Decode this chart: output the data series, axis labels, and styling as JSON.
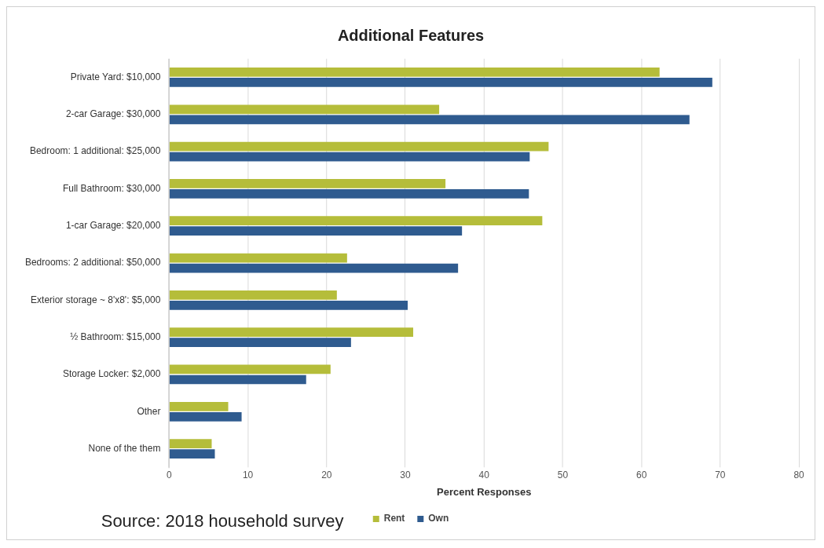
{
  "chart_data": {
    "type": "bar",
    "orientation": "horizontal",
    "title": "Additional Features",
    "xlabel": "Percent Responses",
    "categories": [
      "Private Yard: $10,000",
      "2-car Garage: $30,000",
      "Bedroom: 1 additional: $25,000",
      "Full Bathroom: $30,000",
      "1-car Garage: $20,000",
      "Bedrooms: 2 additional: $50,000",
      "Exterior storage ~ 8'x8': $5,000",
      "½ Bathroom: $15,000",
      "Storage Locker: $2,000",
      "Other",
      "None of the them"
    ],
    "series": [
      {
        "name": "Rent",
        "color": "#b5bd3a",
        "values": [
          62.3,
          34.3,
          48.2,
          35.1,
          47.4,
          22.6,
          21.3,
          31.0,
          20.5,
          7.5,
          5.4
        ]
      },
      {
        "name": "Own",
        "color": "#2f5b8f",
        "values": [
          69.0,
          66.1,
          45.8,
          45.7,
          37.2,
          36.7,
          30.3,
          23.1,
          17.4,
          9.2,
          5.8
        ]
      }
    ],
    "xlim": [
      0,
      80
    ],
    "xticks": [
      0,
      10,
      20,
      30,
      40,
      50,
      60,
      70,
      80
    ],
    "grid": "x",
    "legend": "bottom",
    "annotations": [
      "Source: 2018 household survey"
    ]
  }
}
